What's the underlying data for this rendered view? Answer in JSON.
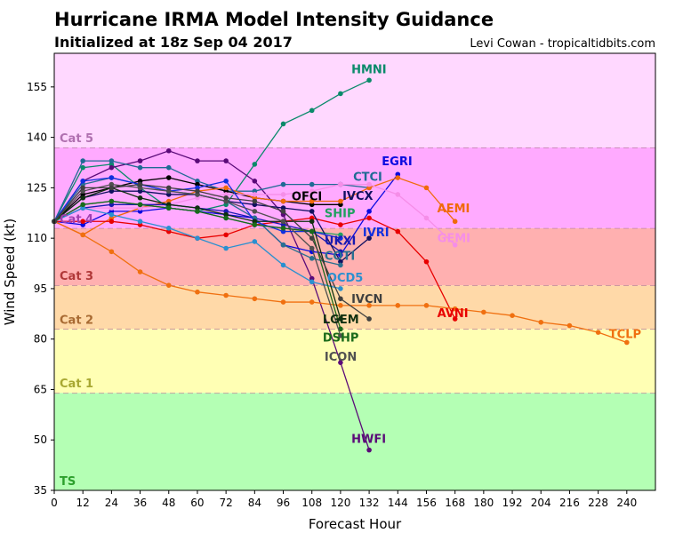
{
  "header": {
    "title": "Hurricane IRMA Model Intensity Guidance",
    "subtitle": "Initialized at 18z Sep 04 2017",
    "credit": "Levi Cowan - tropicaltidbits.com"
  },
  "chart_data": {
    "type": "line",
    "xlabel": "Forecast Hour",
    "ylabel": "Wind Speed (kt)",
    "xlim": [
      0,
      252
    ],
    "ylim": [
      35,
      165
    ],
    "xticks": [
      0,
      12,
      24,
      36,
      48,
      60,
      72,
      84,
      96,
      108,
      120,
      132,
      144,
      156,
      168,
      180,
      192,
      204,
      216,
      228,
      240
    ],
    "yticks": [
      35,
      50,
      65,
      80,
      95,
      110,
      125,
      140,
      155
    ],
    "grid": false,
    "bands": [
      {
        "label": "TS",
        "from": 35,
        "to": 64,
        "color": "#b4ffb4",
        "label_color": "#2ca02c"
      },
      {
        "label": "Cat 1",
        "from": 64,
        "to": 83,
        "color": "#ffffb4",
        "label_color": "#a8a832"
      },
      {
        "label": "Cat 2",
        "from": 83,
        "to": 96,
        "color": "#ffd9a8",
        "label_color": "#a86a32"
      },
      {
        "label": "Cat 3",
        "from": 96,
        "to": 113,
        "color": "#ffb0b0",
        "label_color": "#b03838"
      },
      {
        "label": "Cat 4",
        "from": 113,
        "to": 137,
        "color": "#ffaaff",
        "label_color": "#a040b0"
      },
      {
        "label": "Cat 5",
        "from": 137,
        "to": 165,
        "color": "#ffd8ff",
        "label_color": "#b070b0"
      }
    ],
    "series": [
      {
        "name": "HMNI",
        "color": "#0a8a6a",
        "x": [
          0,
          12,
          24,
          36,
          48,
          60,
          72,
          84,
          96,
          108,
          120,
          132
        ],
        "y": [
          115,
          131,
          132,
          125,
          119,
          118,
          120,
          132,
          144,
          148,
          153,
          157
        ]
      },
      {
        "name": "HWFI",
        "color": "#5a0a78",
        "x": [
          0,
          12,
          24,
          36,
          48,
          60,
          72,
          84,
          96,
          108,
          120,
          132
        ],
        "y": [
          115,
          127,
          131,
          133,
          136,
          133,
          133,
          127,
          117,
          98,
          73,
          47
        ]
      },
      {
        "name": "EGRI",
        "color": "#0a0ae0",
        "x": [
          0,
          12,
          24,
          36,
          48,
          60,
          72,
          84,
          96,
          108,
          120,
          132,
          144
        ],
        "y": [
          115,
          114,
          118,
          118,
          119,
          118,
          117,
          116,
          108,
          106,
          105,
          118,
          129
        ]
      },
      {
        "name": "CTCI",
        "color": "#1f6a94",
        "x": [
          0,
          12,
          24,
          36,
          48,
          60,
          72,
          84,
          96,
          108,
          120,
          132
        ],
        "y": [
          115,
          133,
          133,
          131,
          131,
          127,
          124,
          124,
          126,
          126,
          126,
          125
        ]
      },
      {
        "name": "OFCI",
        "color": "#000000",
        "x": [
          0,
          12,
          24,
          36,
          48,
          60,
          72,
          84,
          96,
          108,
          120
        ],
        "y": [
          115,
          123,
          125,
          127,
          128,
          126,
          124,
          122,
          121,
          120,
          120
        ]
      },
      {
        "name": "AEMI",
        "color": "#f06a0a",
        "x": [
          0,
          12,
          24,
          36,
          48,
          60,
          72,
          84,
          96,
          108,
          120,
          132,
          144,
          156,
          168
        ],
        "y": [
          115,
          111,
          116,
          119,
          121,
          124,
          125,
          122,
          121,
          121,
          121,
          125,
          128,
          125,
          115
        ]
      },
      {
        "name": "GEMI",
        "color": "#f58ee8",
        "x": [
          0,
          12,
          24,
          36,
          48,
          60,
          72,
          84,
          96,
          108,
          120,
          132,
          144,
          156,
          168
        ],
        "y": [
          115,
          119,
          119,
          119,
          120,
          122,
          123,
          123,
          123,
          124,
          126,
          126,
          123,
          116,
          108
        ]
      },
      {
        "name": "AVNI",
        "color": "#e80000",
        "x": [
          0,
          12,
          24,
          36,
          48,
          60,
          72,
          84,
          96,
          108,
          120,
          132,
          144,
          156,
          168
        ],
        "y": [
          115,
          115,
          115,
          114,
          112,
          110,
          111,
          114,
          115,
          116,
          114,
          116,
          112,
          103,
          86
        ]
      },
      {
        "name": "TCLP",
        "color": "#f07010",
        "x": [
          0,
          12,
          24,
          36,
          48,
          60,
          72,
          84,
          96,
          108,
          120,
          132,
          144,
          156,
          168,
          180,
          192,
          204,
          216,
          228,
          240
        ],
        "y": [
          115,
          111,
          106,
          100,
          96,
          94,
          93,
          92,
          91,
          91,
          90,
          90,
          90,
          90,
          89,
          88,
          87,
          85,
          84,
          82,
          79
        ]
      },
      {
        "name": "SHIP",
        "color": "#20a060",
        "x": [
          0,
          12,
          24,
          36,
          48,
          60,
          72,
          84,
          96,
          108,
          120
        ],
        "y": [
          115,
          120,
          121,
          120,
          119,
          118,
          116,
          114,
          113,
          112,
          111
        ]
      },
      {
        "name": "UKXI",
        "color": "#1a1ab0",
        "x": [
          0,
          12,
          24,
          36,
          48,
          60,
          72,
          84,
          96,
          108,
          120
        ],
        "y": [
          115,
          119,
          120,
          120,
          120,
          119,
          118,
          116,
          114,
          112,
          106
        ]
      },
      {
        "name": "IVCX",
        "color": "#101060",
        "x": [
          0,
          12,
          24,
          36,
          48,
          60,
          72,
          84,
          96,
          108,
          120,
          132
        ],
        "y": [
          115,
          122,
          124,
          124,
          123,
          123,
          121,
          120,
          119,
          118,
          103,
          110
        ]
      },
      {
        "name": "COTI",
        "color": "#2a7090",
        "x": [
          0,
          12,
          24,
          36,
          48,
          60,
          72,
          84,
          96,
          108,
          120
        ],
        "y": [
          115,
          126,
          128,
          126,
          124,
          123,
          121,
          116,
          108,
          104,
          102
        ]
      },
      {
        "name": "OCD5",
        "color": "#2a90d0",
        "x": [
          0,
          12,
          24,
          36,
          48,
          60,
          72,
          84,
          96,
          108,
          120
        ],
        "y": [
          115,
          119,
          117,
          115,
          113,
          110,
          107,
          109,
          102,
          97,
          95
        ]
      },
      {
        "name": "IVRI",
        "color": "#1030e0",
        "x": [
          0,
          12,
          24,
          36,
          48,
          60,
          72,
          84,
          96,
          108,
          120
        ],
        "y": [
          115,
          127,
          128,
          126,
          124,
          125,
          127,
          115,
          112,
          112,
          110
        ]
      },
      {
        "name": "LGEM",
        "color": "#103010",
        "x": [
          0,
          12,
          24,
          36,
          48,
          60,
          72,
          84,
          96,
          108,
          120
        ],
        "y": [
          115,
          122,
          125,
          122,
          120,
          119,
          117,
          115,
          115,
          115,
          86
        ]
      },
      {
        "name": "DSHP",
        "color": "#1a6a1a",
        "x": [
          0,
          12,
          24,
          36,
          48,
          60,
          72,
          84,
          96,
          108,
          120
        ],
        "y": [
          115,
          120,
          121,
          120,
          119,
          118,
          116,
          114,
          113,
          112,
          83
        ]
      },
      {
        "name": "ICON",
        "color": "#505050",
        "x": [
          0,
          12,
          24,
          36,
          48,
          60,
          72,
          84,
          96,
          108,
          120
        ],
        "y": [
          115,
          124,
          126,
          125,
          124,
          123,
          121,
          118,
          115,
          107,
          81
        ]
      },
      {
        "name": "IVCN",
        "color": "#404040",
        "x": [
          0,
          12,
          24,
          36,
          48,
          60,
          72,
          84,
          96,
          108,
          120,
          132
        ],
        "y": [
          115,
          125,
          125,
          126,
          125,
          124,
          122,
          121,
          118,
          110,
          92,
          86
        ]
      }
    ]
  }
}
